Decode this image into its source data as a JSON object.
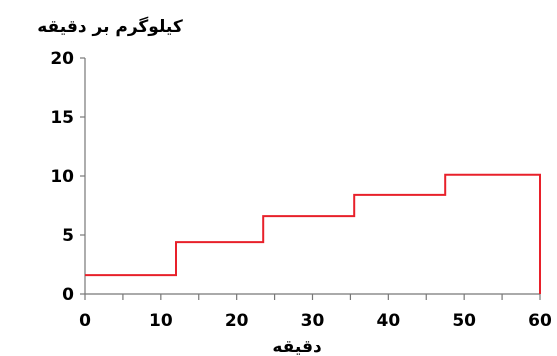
{
  "chart_data": {
    "type": "line",
    "step": true,
    "ylabel": "کیلوگرم بر دقیقه",
    "xlabel": "دقیقه",
    "xlim": [
      0,
      60
    ],
    "ylim": [
      0,
      20
    ],
    "xticks": [
      0,
      10,
      20,
      30,
      40,
      50,
      60
    ],
    "xminor_ticks": [
      5,
      15,
      25,
      35,
      45,
      55
    ],
    "yticks": [
      0,
      5,
      10,
      15,
      20
    ],
    "xtick_labels": [
      "0",
      "10",
      "20",
      "30",
      "40",
      "50",
      "60"
    ],
    "ytick_labels": [
      "0",
      "5",
      "10",
      "15",
      "20"
    ],
    "grid": false,
    "series": [
      {
        "color": "#e8202a",
        "x": [
          0,
          12,
          12,
          23.5,
          23.5,
          35.5,
          35.5,
          47.5,
          47.5,
          60,
          60
        ],
        "y": [
          1.6,
          1.6,
          4.4,
          4.4,
          6.6,
          6.6,
          8.4,
          8.4,
          10.1,
          10.1,
          0
        ]
      }
    ]
  }
}
